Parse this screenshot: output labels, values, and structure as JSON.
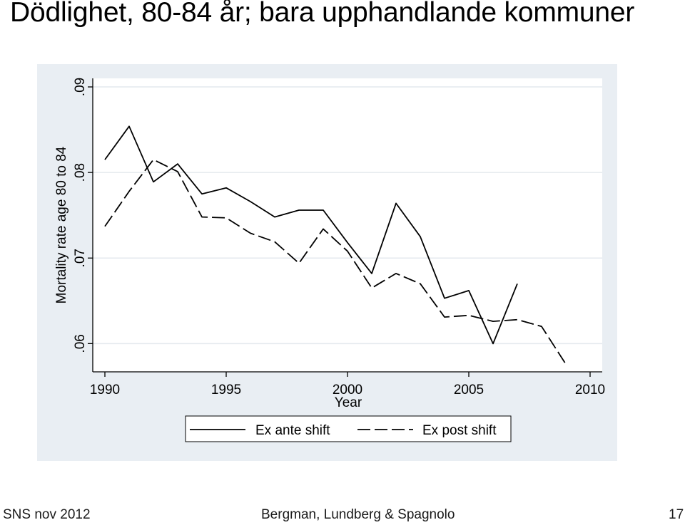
{
  "slide": {
    "title": "Dödlighet, 80-84 år; bara upphandlande kommuner",
    "footer_left": "SNS nov 2012",
    "footer_center": "Bergman, Lundberg & Spagnolo",
    "page_number": "17"
  },
  "colors": {
    "panel_background": "#e9eef3",
    "plot_background": "#ffffff",
    "line": "#000000",
    "gridline": "#e4e9ee"
  },
  "chart_data": {
    "type": "line",
    "title": "",
    "xlabel": "Year",
    "ylabel": "Mortality rate age 80 to 84",
    "xlim": [
      1989.5,
      2010.5
    ],
    "ylim": [
      0.0567,
      0.091
    ],
    "x_ticks": [
      1990,
      1995,
      2000,
      2005,
      2010
    ],
    "x_tick_labels": [
      "1990",
      "1995",
      "2000",
      "2005",
      "2010"
    ],
    "y_ticks": [
      0.06,
      0.07,
      0.08,
      0.09
    ],
    "y_tick_labels": [
      ".06",
      ".07",
      ".08",
      ".09"
    ],
    "grid": true,
    "legend_position": "bottom",
    "series": [
      {
        "name": "Ex ante shift",
        "style": "solid",
        "x": [
          1990,
          1991,
          1992,
          1993,
          1994,
          1995,
          1996,
          1997,
          1998,
          1999,
          2000,
          2001,
          2002,
          2003,
          2004,
          2005,
          2006,
          2007
        ],
        "values": [
          0.0815,
          0.0854,
          0.0789,
          0.081,
          0.0775,
          0.0782,
          0.0766,
          0.0748,
          0.0756,
          0.0756,
          0.0718,
          0.0682,
          0.0764,
          0.0725,
          0.0653,
          0.0662,
          0.06,
          0.067
        ]
      },
      {
        "name": "Ex post shift",
        "style": "dashed",
        "x": [
          1990,
          1991,
          1992,
          1993,
          1994,
          1995,
          1996,
          1997,
          1998,
          1999,
          2000,
          2001,
          2002,
          2003,
          2004,
          2005,
          2006,
          2007,
          2008,
          2009
        ],
        "values": [
          0.0737,
          0.0778,
          0.0815,
          0.0801,
          0.0748,
          0.0747,
          0.0729,
          0.0719,
          0.0694,
          0.0734,
          0.0708,
          0.0665,
          0.0682,
          0.067,
          0.0631,
          0.0633,
          0.0626,
          0.0628,
          0.062,
          0.0576
        ]
      }
    ]
  }
}
